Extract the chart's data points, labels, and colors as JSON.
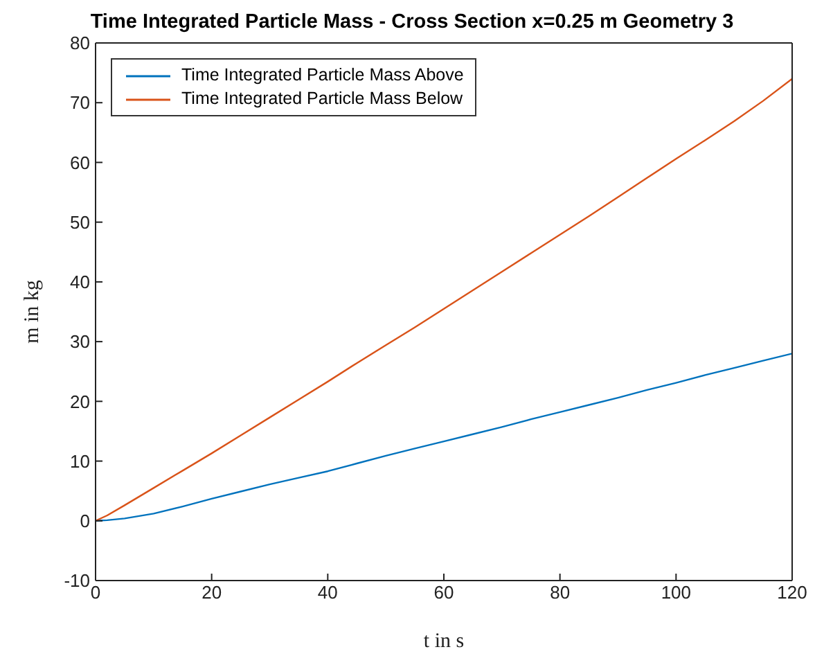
{
  "chart_data": {
    "type": "line",
    "title": "Time Integrated Particle Mass - Cross Section x=0.25 m Geometry 3",
    "xlabel": "t in s",
    "ylabel": "m in kg",
    "x": [
      0,
      2,
      5,
      10,
      15,
      20,
      25,
      30,
      35,
      40,
      45,
      50,
      55,
      60,
      65,
      70,
      75,
      80,
      85,
      90,
      95,
      100,
      105,
      110,
      115,
      120
    ],
    "series": [
      {
        "name": "Time Integrated Particle Mass Above",
        "color": "#0072bd",
        "values": [
          0,
          0.1,
          0.4,
          1.2,
          2.4,
          3.7,
          4.9,
          6.1,
          7.2,
          8.3,
          9.6,
          10.9,
          12.1,
          13.3,
          14.5,
          15.7,
          17,
          18.2,
          19.4,
          20.6,
          21.9,
          23.1,
          24.4,
          25.6,
          26.8,
          28
        ]
      },
      {
        "name": "Time Integrated Particle Mass Below",
        "color": "#d95319",
        "values": [
          0,
          0.9,
          2.6,
          5.5,
          8.4,
          11.3,
          14.3,
          17.3,
          20.3,
          23.3,
          26.4,
          29.4,
          32.4,
          35.5,
          38.6,
          41.7,
          44.8,
          47.9,
          51,
          54.2,
          57.4,
          60.6,
          63.7,
          66.9,
          70.3,
          74
        ]
      }
    ],
    "xlim": [
      0,
      120
    ],
    "xticks": [
      0,
      20,
      40,
      60,
      80,
      100,
      120
    ],
    "ylim": [
      -10,
      80
    ],
    "yticks": [
      -10,
      0,
      10,
      20,
      30,
      40,
      50,
      60,
      70,
      80
    ],
    "grid": false,
    "legend": "top left",
    "marker": "none",
    "line_style": "solid"
  }
}
